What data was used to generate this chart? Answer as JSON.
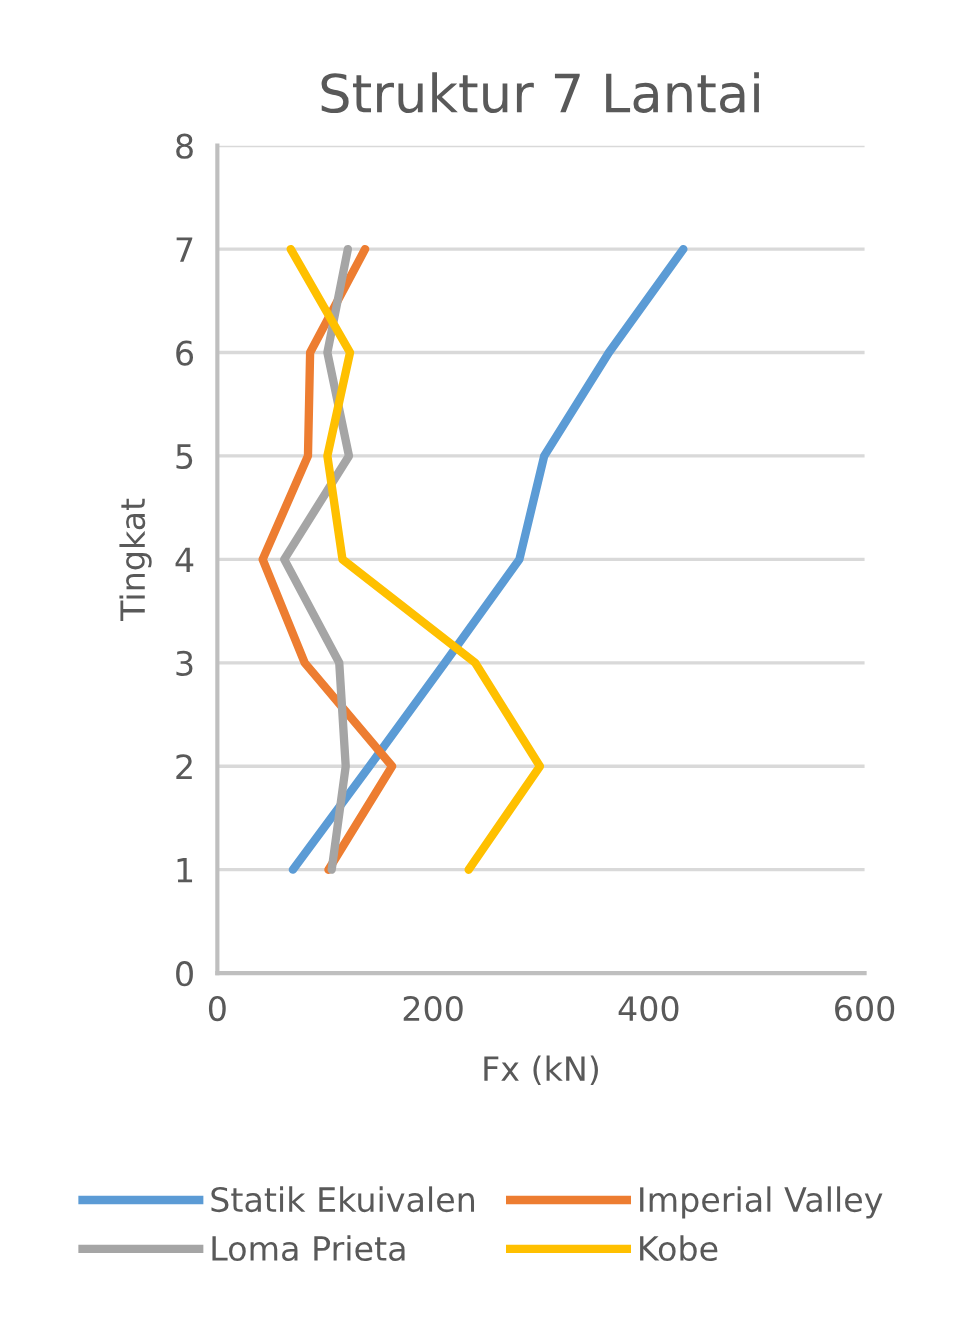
{
  "chart_data": {
    "type": "line",
    "title": "Struktur 7 Lantai",
    "xlabel": "Fx (kN)",
    "ylabel": "Tingkat",
    "xlim": [
      0,
      600
    ],
    "xticks": [
      0,
      200,
      400,
      600
    ],
    "ylim": [
      0,
      8
    ],
    "yticks": [
      0,
      1,
      2,
      3,
      4,
      5,
      6,
      7,
      8
    ],
    "grid": "y",
    "legend": "bottom",
    "marker": "none",
    "line_style": "solid",
    "series": [
      {
        "name": "Statik Ekuivalen",
        "color": "#5b9bd5",
        "x": [
          70,
          141,
          211,
          280,
          303,
          363,
          432
        ],
        "values": [
          1,
          2,
          3,
          4,
          5,
          6,
          7
        ]
      },
      {
        "name": "Imperial Valley",
        "color": "#ed7d31",
        "x": [
          103,
          162,
          81,
          42,
          84,
          86,
          137
        ],
        "values": [
          1,
          2,
          3,
          4,
          5,
          6,
          7
        ]
      },
      {
        "name": "Loma Prieta",
        "color": "#a5a5a5",
        "x": [
          106,
          119,
          113,
          62,
          122,
          102,
          121
        ],
        "values": [
          1,
          2,
          3,
          4,
          5,
          6,
          7
        ]
      },
      {
        "name": "Kobe",
        "color": "#ffc000",
        "x": [
          233,
          299,
          239,
          116,
          102,
          123,
          68
        ],
        "values": [
          1,
          2,
          3,
          4,
          5,
          6,
          7
        ]
      }
    ]
  }
}
